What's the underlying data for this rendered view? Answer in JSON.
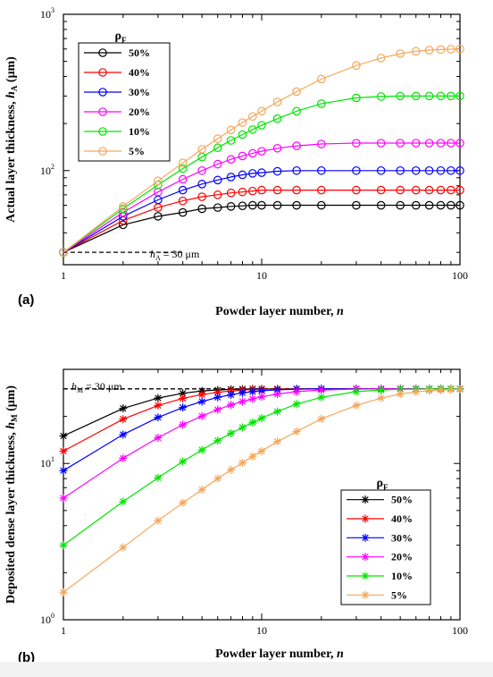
{
  "colors": {
    "s50": "#000000",
    "s40": "#ff0000",
    "s30": "#0000ff",
    "s20": "#ff00ff",
    "s10": "#00e600",
    "s5": "#f5a65b"
  },
  "chart_data": [
    {
      "type": "line",
      "panel_label": "(a)",
      "xlabel_parts": [
        "Powder layer number, ",
        "n"
      ],
      "ylabel_parts": [
        "Actual layer thickness, ",
        "h",
        "A",
        " (μm)"
      ],
      "xscale": "log",
      "yscale": "log",
      "xlim": [
        1,
        100
      ],
      "ylim": [
        25,
        1000
      ],
      "xticks": [
        1,
        10,
        100
      ],
      "xtick_labels": [
        "1",
        "10",
        "100"
      ],
      "yticks": [
        100,
        1000
      ],
      "ytick_labels": [
        [
          "10",
          "2"
        ],
        [
          "10",
          "3"
        ]
      ],
      "marker": "circle",
      "legend_title": "ρF",
      "legend_placement": "top-left",
      "annotation_parts": [
        "h",
        "A",
        " = 30 μm"
      ],
      "reference_line": {
        "y": 30,
        "x": [
          1,
          4.1
        ],
        "style": "dashed"
      },
      "x": [
        1,
        2,
        3,
        4,
        5,
        6,
        7,
        8,
        9,
        10,
        12,
        15,
        20,
        30,
        40,
        50,
        60,
        70,
        80,
        90,
        100
      ],
      "series": [
        {
          "name": "50%",
          "color_key": "s50",
          "values": [
            30,
            45,
            51,
            54,
            57,
            58,
            59,
            59.5,
            60,
            60,
            60,
            60,
            60,
            60,
            60,
            60,
            60,
            60,
            60,
            60,
            60
          ]
        },
        {
          "name": "40%",
          "color_key": "s40",
          "values": [
            30,
            48,
            58,
            64,
            68,
            70,
            72,
            73,
            74,
            75,
            75,
            75,
            75,
            75,
            75,
            75,
            75,
            75,
            75,
            75,
            75
          ]
        },
        {
          "name": "30%",
          "color_key": "s30",
          "values": [
            30,
            51,
            65,
            75,
            82,
            87,
            91,
            94,
            96,
            97,
            99,
            100,
            100,
            100,
            100,
            100,
            100,
            100,
            100,
            100,
            100
          ]
        },
        {
          "name": "20%",
          "color_key": "s20",
          "values": [
            30,
            54,
            73,
            88,
            100,
            110,
            118,
            124,
            129,
            133,
            139,
            144,
            148,
            150,
            150,
            150,
            150,
            150,
            150,
            150,
            150
          ]
        },
        {
          "name": "10%",
          "color_key": "s10",
          "values": [
            30,
            57,
            81,
            103,
            122,
            140,
            156,
            170,
            183,
            195,
            215,
            240,
            268,
            292,
            298,
            300,
            300,
            300,
            300,
            300,
            300
          ]
        },
        {
          "name": "5%",
          "color_key": "s5",
          "values": [
            30,
            59,
            86,
            112,
            137,
            160,
            182,
            203,
            222,
            240,
            275,
            320,
            385,
            470,
            525,
            560,
            580,
            590,
            595,
            598,
            600
          ]
        }
      ]
    },
    {
      "type": "line",
      "panel_label": "(b)",
      "xlabel_parts": [
        "Powder layer number, ",
        "n"
      ],
      "ylabel_parts": [
        "Deposited dense layer thickness, ",
        "h",
        "M",
        " (μm)"
      ],
      "xscale": "log",
      "yscale": "log",
      "xlim": [
        1,
        100
      ],
      "ylim": [
        1,
        40
      ],
      "xticks": [
        1,
        10,
        100
      ],
      "xtick_labels": [
        "1",
        "10",
        "100"
      ],
      "yticks": [
        1,
        10
      ],
      "ytick_labels": [
        [
          "10",
          "0"
        ],
        [
          "10",
          "1"
        ]
      ],
      "marker": "asterisk",
      "legend_title": "ρF",
      "legend_placement": "bottom-right",
      "annotation_parts": [
        "h",
        "M",
        " = 30 μm"
      ],
      "reference_line": {
        "y": 30,
        "x": [
          1,
          100
        ],
        "style": "dashed"
      },
      "x": [
        1,
        2,
        3,
        4,
        5,
        6,
        7,
        8,
        9,
        10,
        12,
        15,
        20,
        30,
        40,
        50,
        60,
        70,
        80,
        90,
        100
      ],
      "series": [
        {
          "name": "50%",
          "color_key": "s50",
          "values": [
            15,
            22.5,
            26.2,
            28.1,
            29.1,
            29.5,
            29.8,
            29.9,
            30,
            30,
            30,
            30,
            30,
            30,
            30,
            30,
            30,
            30,
            30,
            30,
            30
          ]
        },
        {
          "name": "40%",
          "color_key": "s40",
          "values": [
            12,
            19.2,
            23.5,
            26.1,
            27.6,
            28.5,
            29.1,
            29.5,
            29.7,
            29.8,
            29.9,
            30,
            30,
            30,
            30,
            30,
            30,
            30,
            30,
            30,
            30
          ]
        },
        {
          "name": "30%",
          "color_key": "s30",
          "values": [
            9,
            15.3,
            19.7,
            22.8,
            24.9,
            26.5,
            27.5,
            28.3,
            28.8,
            29.2,
            29.6,
            29.9,
            30,
            30,
            30,
            30,
            30,
            30,
            30,
            30,
            30
          ]
        },
        {
          "name": "20%",
          "color_key": "s20",
          "values": [
            6,
            10.8,
            14.6,
            17.7,
            20.1,
            22.1,
            23.7,
            24.9,
            25.9,
            26.7,
            27.8,
            28.8,
            29.5,
            29.9,
            30,
            30,
            30,
            30,
            30,
            30,
            30
          ]
        },
        {
          "name": "10%",
          "color_key": "s10",
          "values": [
            3,
            5.7,
            8.1,
            10.3,
            12.2,
            14,
            15.6,
            17,
            18.3,
            19.5,
            21.5,
            24,
            26.5,
            28.8,
            29.5,
            29.8,
            29.9,
            30,
            30,
            30,
            30
          ]
        },
        {
          "name": "5%",
          "color_key": "s5",
          "values": [
            1.5,
            2.9,
            4.3,
            5.6,
            6.8,
            8,
            9.1,
            10.1,
            11.1,
            12,
            13.8,
            16,
            19.3,
            23.5,
            26.2,
            27.8,
            28.7,
            29.2,
            29.5,
            29.7,
            29.8
          ]
        }
      ]
    }
  ]
}
